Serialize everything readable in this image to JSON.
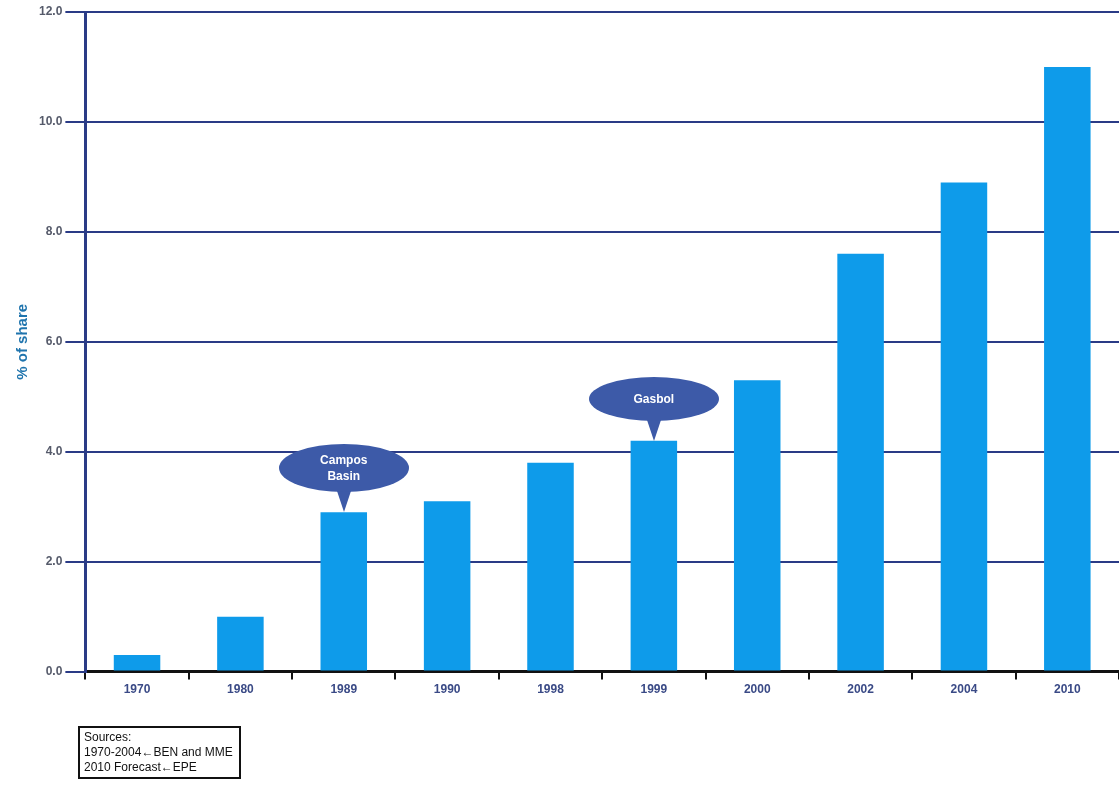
{
  "chart_data": {
    "type": "bar",
    "ylabel": "% of share",
    "categories": [
      "1970",
      "1980",
      "1989",
      "1990",
      "1998",
      "1999",
      "2000",
      "2002",
      "2004",
      "2010"
    ],
    "values": [
      0.3,
      1.0,
      2.9,
      3.1,
      3.8,
      4.2,
      5.3,
      7.6,
      8.9,
      11.0
    ],
    "color": "#0e9bea",
    "ylim": [
      0,
      12
    ],
    "yticks": [
      {
        "value": 0,
        "label": "0.0"
      },
      {
        "value": 2,
        "label": "2.0"
      },
      {
        "value": 4,
        "label": "4.0"
      },
      {
        "value": 6,
        "label": "6.0"
      },
      {
        "value": 8,
        "label": "8.0"
      },
      {
        "value": 10,
        "label": "10.0"
      },
      {
        "value": 12,
        "label": "12.0"
      }
    ],
    "grid": "y",
    "legend": false,
    "annotations": [
      {
        "text": "Campos Basin",
        "x": "1989",
        "y": 2.9
      },
      {
        "text": "Gasbol",
        "x": "1999",
        "y": 4.2
      },
      "Sources:\n1970-2004←BEN and MME\n2010 Forecast←EPE"
    ]
  }
}
